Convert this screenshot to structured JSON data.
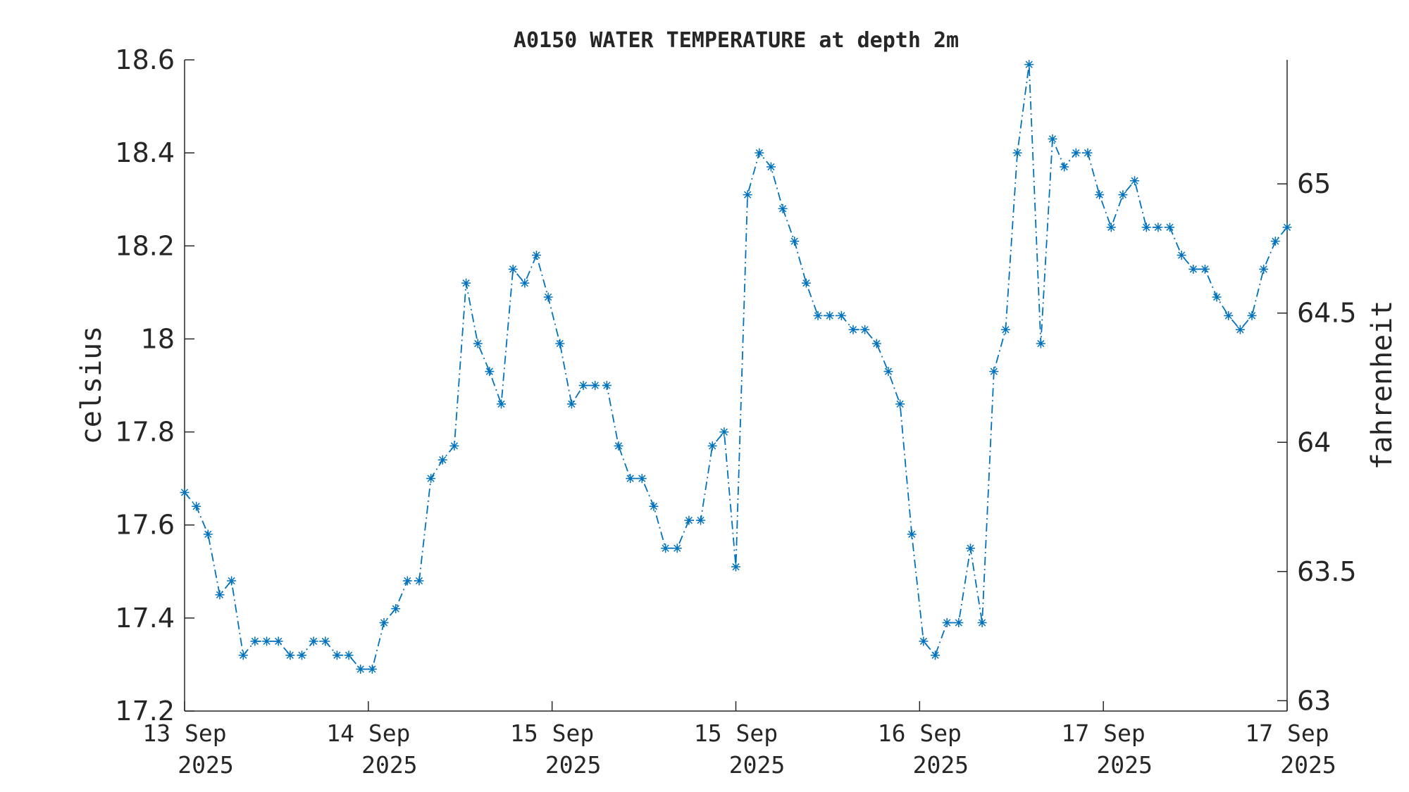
{
  "chart_data": {
    "type": "line",
    "title": "A0150 WATER TEMPERATURE at depth 2m",
    "ylabel": "celsius",
    "y2label": "fahrenheit",
    "ylim": [
      17.2,
      18.6
    ],
    "y2lim": [
      62.96,
      65.48
    ],
    "yticks": [
      17.2,
      17.4,
      17.6,
      17.8,
      18.0,
      18.2,
      18.4,
      18.6
    ],
    "ytick_labels": [
      "17.2",
      "17.4",
      "17.6",
      "17.8",
      "18",
      "18.2",
      "18.4",
      "18.6"
    ],
    "y2ticks": [
      63.0,
      63.5,
      64.0,
      64.5,
      65.0
    ],
    "y2tick_labels": [
      "63",
      "63.5",
      "64",
      "64.5",
      "65"
    ],
    "xticks": [
      {
        "day": "13 Sep",
        "year": "2025"
      },
      {
        "day": "14 Sep",
        "year": "2025"
      },
      {
        "day": "15 Sep",
        "year": "2025"
      },
      {
        "day": "15 Sep",
        "year": "2025"
      },
      {
        "day": "16 Sep",
        "year": "2025"
      },
      {
        "day": "17 Sep",
        "year": "2025"
      },
      {
        "day": "17 Sep",
        "year": "2025"
      }
    ],
    "grid": false,
    "marker": "asterisk",
    "line_style": "dash-dot",
    "color": "#0072BD",
    "series": [
      {
        "values": [
          17.67,
          17.64,
          17.58,
          17.45,
          17.48,
          17.32,
          17.35,
          17.35,
          17.35,
          17.32,
          17.32,
          17.35,
          17.35,
          17.32,
          17.32,
          17.29,
          17.29,
          17.39,
          17.42,
          17.48,
          17.48,
          17.7,
          17.74,
          17.77,
          18.12,
          17.99,
          17.93,
          17.86,
          18.15,
          18.12,
          18.18,
          18.09,
          17.99,
          17.86,
          17.9,
          17.9,
          17.9,
          17.77,
          17.7,
          17.7,
          17.64,
          17.55,
          17.55,
          17.61,
          17.61,
          17.77,
          17.8,
          17.51,
          18.31,
          18.4,
          18.37,
          18.28,
          18.21,
          18.12,
          18.05,
          18.05,
          18.05,
          18.02,
          18.02,
          17.99,
          17.93,
          17.86,
          17.58,
          17.35,
          17.32,
          17.39,
          17.39,
          17.55,
          17.39,
          17.93,
          18.02,
          18.4,
          18.59,
          17.99,
          18.43,
          18.37,
          18.4,
          18.4,
          18.31,
          18.24,
          18.31,
          18.34,
          18.24,
          18.24,
          18.24,
          18.18,
          18.15,
          18.15,
          18.09,
          18.05,
          18.02,
          18.05,
          18.15,
          18.21,
          18.24
        ]
      }
    ]
  }
}
